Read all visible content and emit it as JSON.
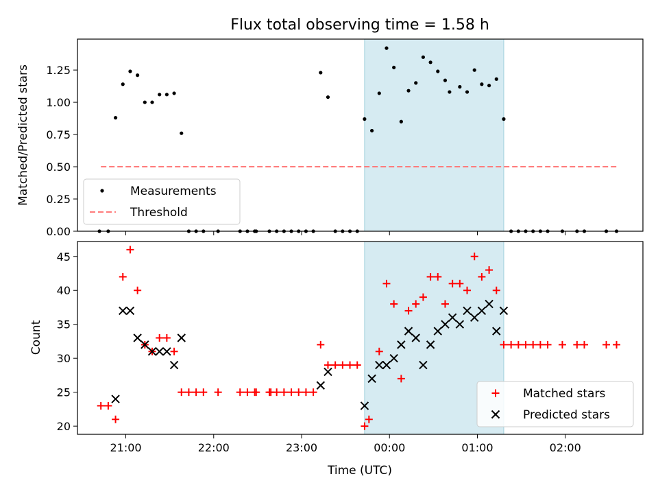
{
  "chart_data": [
    {
      "type": "scatter",
      "title": "Flux total observing time = 1.58 h",
      "xlabel": "",
      "ylabel": "Matched/Predicted stars",
      "xlim": [
        "20:27",
        "02:53"
      ],
      "ylim": [
        0,
        1.49
      ],
      "yticks": [
        "0.00",
        "0.25",
        "0.50",
        "0.75",
        "1.00",
        "1.25"
      ],
      "legend_position": "lower-left",
      "shaded_region": {
        "from": "23:43",
        "to": "01:18",
        "color": "#add8e6"
      },
      "series": [
        {
          "name": "Measurements",
          "marker": "dot",
          "color": "#000000",
          "points": [
            [
              "20:42",
              0
            ],
            [
              "20:48",
              0
            ],
            [
              "20:53",
              0.88
            ],
            [
              "20:58",
              1.14
            ],
            [
              "21:03",
              1.24
            ],
            [
              "21:08",
              1.21
            ],
            [
              "21:13",
              1.0
            ],
            [
              "21:18",
              1.0
            ],
            [
              "21:23",
              1.06
            ],
            [
              "21:28",
              1.06
            ],
            [
              "21:33",
              1.07
            ],
            [
              "21:38",
              0.76
            ],
            [
              "21:43",
              0
            ],
            [
              "21:48",
              0
            ],
            [
              "21:53",
              0
            ],
            [
              "22:03",
              0
            ],
            [
              "22:18",
              0
            ],
            [
              "22:23",
              0
            ],
            [
              "22:28",
              0
            ],
            [
              "22:29",
              0
            ],
            [
              "22:38",
              0
            ],
            [
              "22:43",
              0
            ],
            [
              "22:48",
              0
            ],
            [
              "22:53",
              0
            ],
            [
              "22:58",
              0
            ],
            [
              "23:03",
              0
            ],
            [
              "23:08",
              0
            ],
            [
              "23:13",
              1.23
            ],
            [
              "23:18",
              1.04
            ],
            [
              "23:23",
              0
            ],
            [
              "23:28",
              0
            ],
            [
              "23:33",
              0
            ],
            [
              "23:38",
              0
            ],
            [
              "23:43",
              0.87
            ],
            [
              "23:48",
              0.78
            ],
            [
              "23:53",
              1.07
            ],
            [
              "23:58",
              1.42
            ],
            [
              "00:03",
              1.27
            ],
            [
              "00:08",
              0.85
            ],
            [
              "00:13",
              1.09
            ],
            [
              "00:18",
              1.15
            ],
            [
              "00:23",
              1.35
            ],
            [
              "00:28",
              1.31
            ],
            [
              "00:33",
              1.24
            ],
            [
              "00:38",
              1.17
            ],
            [
              "00:41",
              1.08
            ],
            [
              "00:48",
              1.12
            ],
            [
              "00:53",
              1.08
            ],
            [
              "00:58",
              1.25
            ],
            [
              "01:03",
              1.14
            ],
            [
              "01:08",
              1.13
            ],
            [
              "01:13",
              1.18
            ],
            [
              "01:18",
              0.87
            ],
            [
              "01:23",
              0
            ],
            [
              "01:28",
              0
            ],
            [
              "01:33",
              0
            ],
            [
              "01:38",
              0
            ],
            [
              "01:43",
              0
            ],
            [
              "01:48",
              0
            ],
            [
              "01:58",
              0
            ],
            [
              "02:08",
              0
            ],
            [
              "02:13",
              0
            ],
            [
              "02:28",
              0
            ],
            [
              "02:35",
              0
            ]
          ]
        },
        {
          "name": "Threshold",
          "marker": "dashed-line",
          "color": "#ff7b7b",
          "points": [
            [
              "20:43",
              0.5
            ],
            [
              "02:35",
              0.5
            ]
          ]
        }
      ]
    },
    {
      "type": "scatter",
      "title": "",
      "xlabel": "Time (UTC)",
      "ylabel": "Count",
      "xlim": [
        "20:27",
        "02:53"
      ],
      "ylim": [
        18.8,
        47.2
      ],
      "yticks": [
        "20",
        "25",
        "30",
        "35",
        "40",
        "45"
      ],
      "xticks": [
        "21:00",
        "22:00",
        "23:00",
        "00:00",
        "01:00",
        "02:00"
      ],
      "legend_position": "lower-right",
      "shaded_region": {
        "from": "23:43",
        "to": "01:18",
        "color": "#add8e6"
      },
      "series": [
        {
          "name": "Matched stars",
          "marker": "plus",
          "color": "#ff0000",
          "points": [
            [
              "20:43",
              23
            ],
            [
              "20:48",
              23
            ],
            [
              "20:53",
              21
            ],
            [
              "20:58",
              42
            ],
            [
              "21:03",
              46
            ],
            [
              "21:08",
              40
            ],
            [
              "21:13",
              32
            ],
            [
              "21:18",
              31
            ],
            [
              "21:23",
              33
            ],
            [
              "21:28",
              33
            ],
            [
              "21:33",
              31
            ],
            [
              "21:38",
              25
            ],
            [
              "21:43",
              25
            ],
            [
              "21:48",
              25
            ],
            [
              "21:53",
              25
            ],
            [
              "22:03",
              25
            ],
            [
              "22:18",
              25
            ],
            [
              "22:23",
              25
            ],
            [
              "22:28",
              25
            ],
            [
              "22:29",
              25
            ],
            [
              "22:38",
              25
            ],
            [
              "22:39",
              25
            ],
            [
              "22:43",
              25
            ],
            [
              "22:48",
              25
            ],
            [
              "22:53",
              25
            ],
            [
              "22:58",
              25
            ],
            [
              "23:03",
              25
            ],
            [
              "23:08",
              25
            ],
            [
              "23:13",
              32
            ],
            [
              "23:18",
              29
            ],
            [
              "23:23",
              29
            ],
            [
              "23:28",
              29
            ],
            [
              "23:33",
              29
            ],
            [
              "23:38",
              29
            ],
            [
              "23:43",
              20
            ],
            [
              "23:46",
              21
            ],
            [
              "23:53",
              31
            ],
            [
              "23:58",
              41
            ],
            [
              "00:03",
              38
            ],
            [
              "00:08",
              27
            ],
            [
              "00:13",
              37
            ],
            [
              "00:18",
              38
            ],
            [
              "00:23",
              39
            ],
            [
              "00:28",
              42
            ],
            [
              "00:33",
              42
            ],
            [
              "00:38",
              38
            ],
            [
              "00:43",
              41
            ],
            [
              "00:48",
              41
            ],
            [
              "00:53",
              40
            ],
            [
              "00:58",
              45
            ],
            [
              "01:03",
              42
            ],
            [
              "01:08",
              43
            ],
            [
              "01:13",
              40
            ],
            [
              "01:18",
              32
            ],
            [
              "01:23",
              32
            ],
            [
              "01:28",
              32
            ],
            [
              "01:33",
              32
            ],
            [
              "01:38",
              32
            ],
            [
              "01:43",
              32
            ],
            [
              "01:48",
              32
            ],
            [
              "01:58",
              32
            ],
            [
              "02:08",
              32
            ],
            [
              "02:13",
              32
            ],
            [
              "02:28",
              32
            ],
            [
              "02:35",
              32
            ]
          ]
        },
        {
          "name": "Predicted stars",
          "marker": "x",
          "color": "#000000",
          "points": [
            [
              "20:53",
              24
            ],
            [
              "20:58",
              37
            ],
            [
              "21:03",
              37
            ],
            [
              "21:08",
              33
            ],
            [
              "21:13",
              32
            ],
            [
              "21:18",
              31
            ],
            [
              "21:23",
              31
            ],
            [
              "21:28",
              31
            ],
            [
              "21:33",
              29
            ],
            [
              "21:38",
              33
            ],
            [
              "23:13",
              26
            ],
            [
              "23:18",
              28
            ],
            [
              "23:43",
              23
            ],
            [
              "23:48",
              27
            ],
            [
              "23:53",
              29
            ],
            [
              "23:58",
              29
            ],
            [
              "00:03",
              30
            ],
            [
              "00:08",
              32
            ],
            [
              "00:13",
              34
            ],
            [
              "00:18",
              33
            ],
            [
              "00:23",
              29
            ],
            [
              "00:28",
              32
            ],
            [
              "00:33",
              34
            ],
            [
              "00:38",
              35
            ],
            [
              "00:43",
              36
            ],
            [
              "00:48",
              35
            ],
            [
              "00:53",
              37
            ],
            [
              "00:58",
              36
            ],
            [
              "01:03",
              37
            ],
            [
              "01:08",
              38
            ],
            [
              "01:13",
              34
            ],
            [
              "01:18",
              37
            ]
          ]
        }
      ]
    }
  ]
}
